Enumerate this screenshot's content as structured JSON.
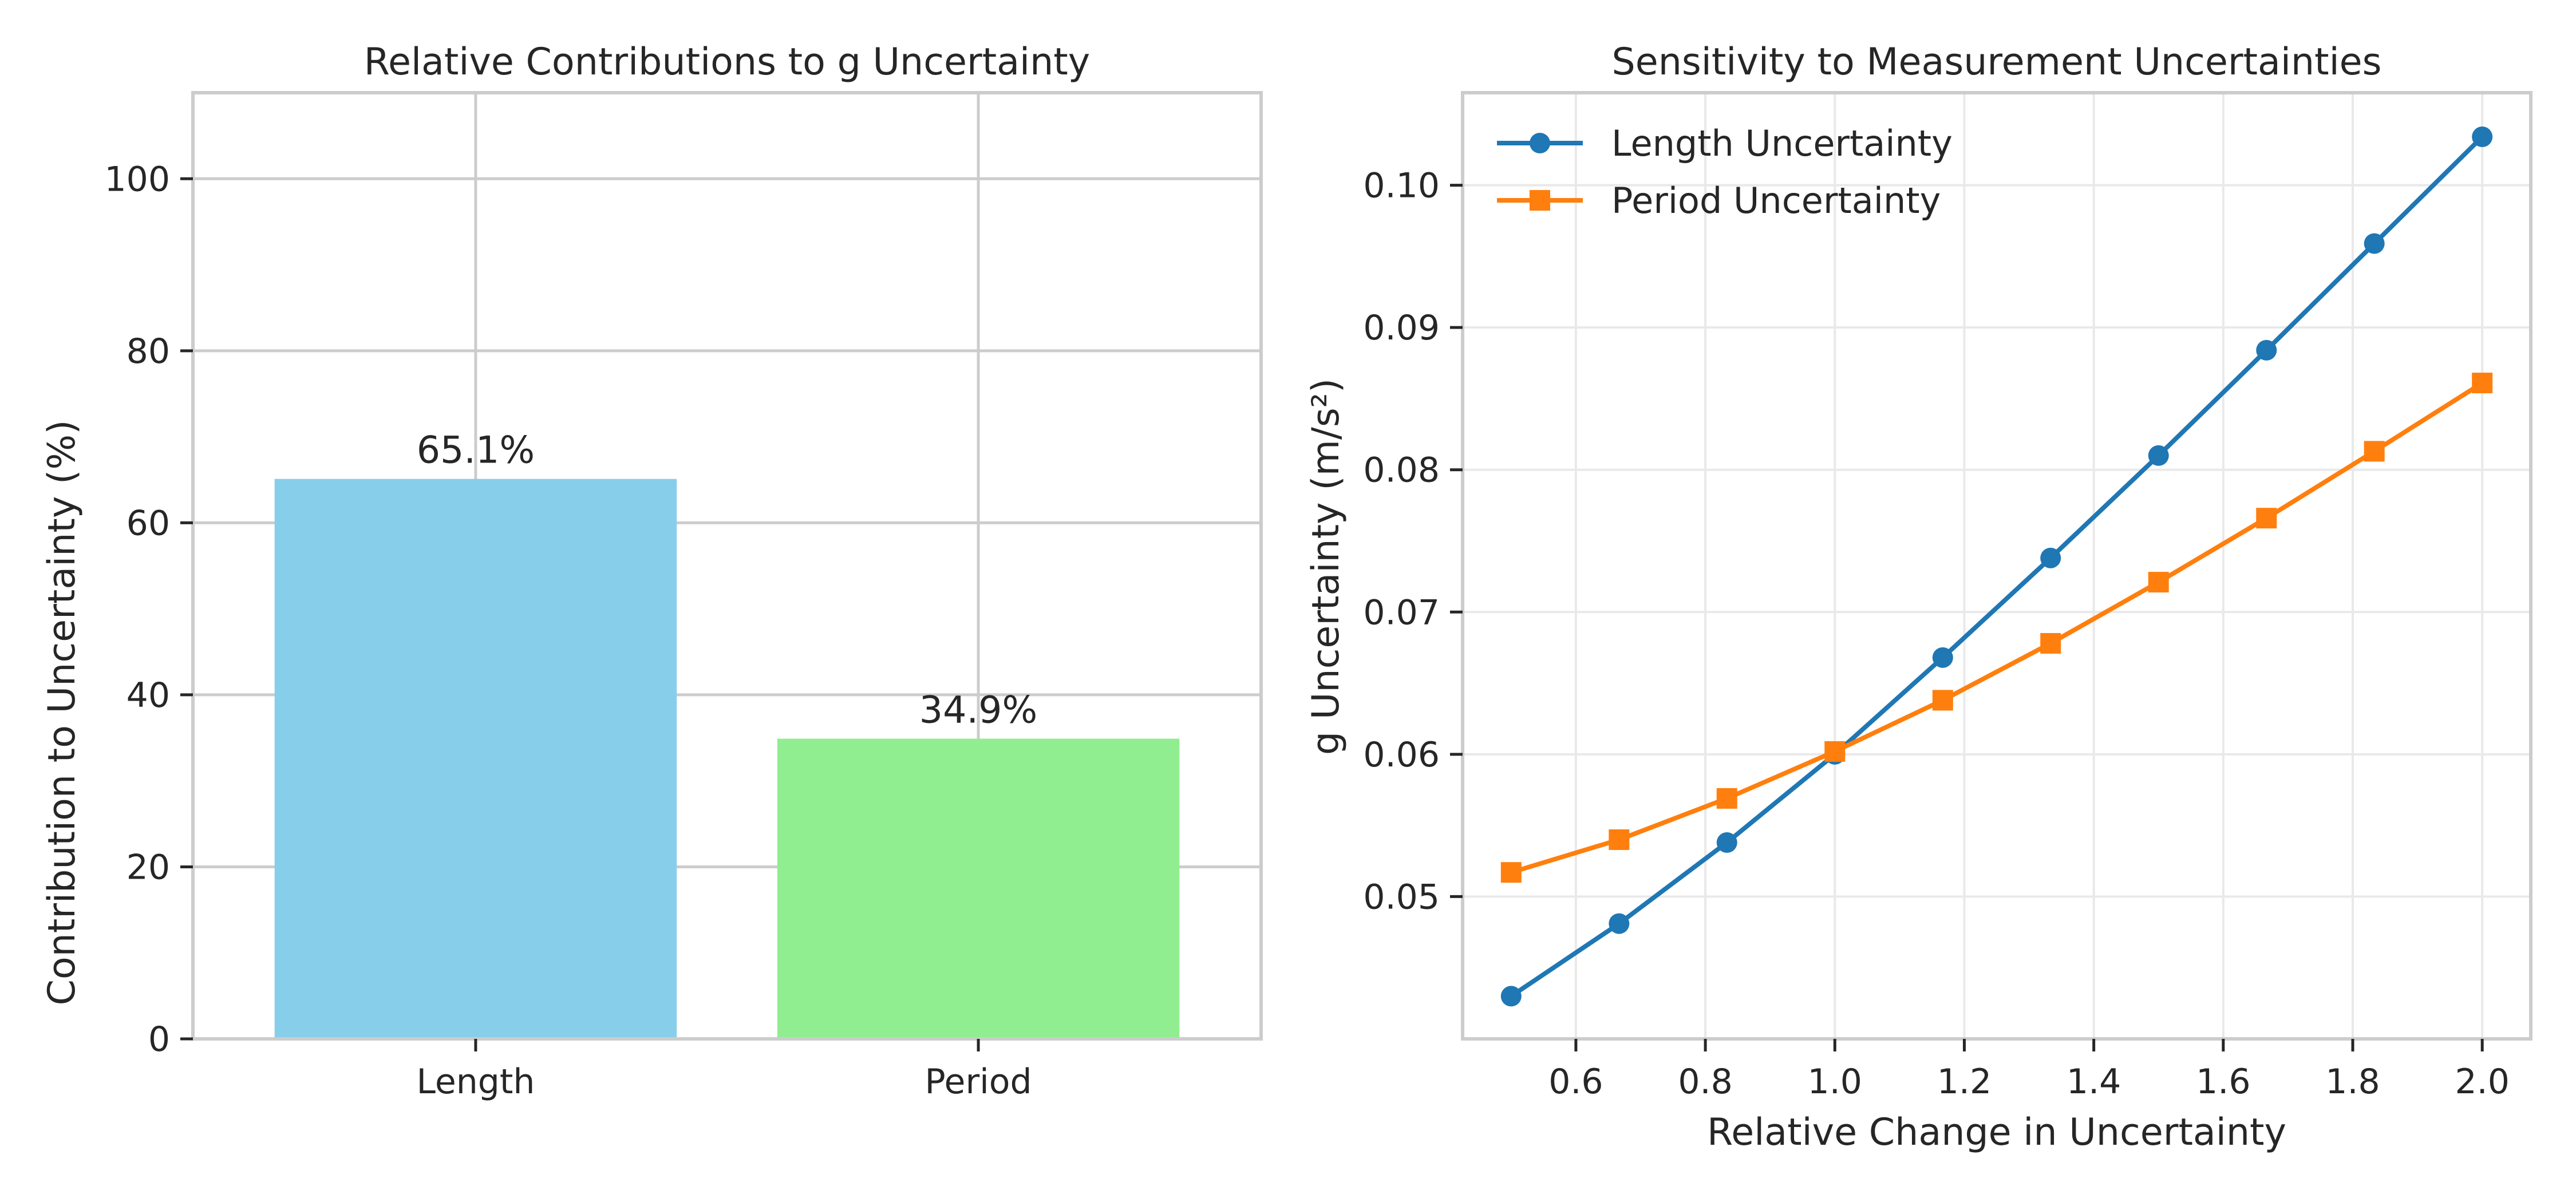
{
  "chart_data": [
    {
      "type": "bar",
      "title": "Relative Contributions to g Uncertainty",
      "xlabel": "",
      "ylabel": "Contribution to Uncertainty (%)",
      "categories": [
        "Length",
        "Period"
      ],
      "values": [
        65.1,
        34.9
      ],
      "data_labels": [
        "65.1%",
        "34.9%"
      ],
      "colors": [
        "#87CEEB",
        "#90EE90"
      ],
      "ylim": [
        0,
        110
      ],
      "yticks": [
        0,
        20,
        40,
        60,
        80,
        100
      ],
      "grid": true
    },
    {
      "type": "line",
      "title": "Sensitivity to Measurement Uncertainties",
      "xlabel": "Relative Change in Uncertainty",
      "ylabel": "g Uncertainty (m/s²)",
      "x": [
        0.5,
        0.6667,
        0.8333,
        1.0,
        1.1667,
        1.3333,
        1.5,
        1.6667,
        1.8333,
        2.0
      ],
      "series": [
        {
          "name": "Length Uncertainty",
          "marker": "circle",
          "color": "#1f77b4",
          "values": [
            0.043,
            0.0481,
            0.0538,
            0.06,
            0.0668,
            0.0738,
            0.081,
            0.0884,
            0.0959,
            0.1034
          ]
        },
        {
          "name": "Period Uncertainty",
          "marker": "square",
          "color": "#ff7f0e",
          "values": [
            0.0517,
            0.054,
            0.0569,
            0.0602,
            0.0638,
            0.0678,
            0.0721,
            0.0766,
            0.0813,
            0.0861
          ]
        }
      ],
      "xlim": [
        0.425,
        2.075
      ],
      "ylim": [
        0.04,
        0.1065
      ],
      "xticks": [
        0.6,
        0.8,
        1.0,
        1.2,
        1.4,
        1.6,
        1.8,
        2.0
      ],
      "xtick_labels": [
        "0.6",
        "0.8",
        "1.0",
        "1.2",
        "1.4",
        "1.6",
        "1.8",
        "2.0"
      ],
      "yticks": [
        0.05,
        0.06,
        0.07,
        0.08,
        0.09,
        0.1
      ],
      "ytick_labels": [
        "0.05",
        "0.06",
        "0.07",
        "0.08",
        "0.09",
        "0.10"
      ],
      "grid": true,
      "legend": "top-left"
    }
  ]
}
